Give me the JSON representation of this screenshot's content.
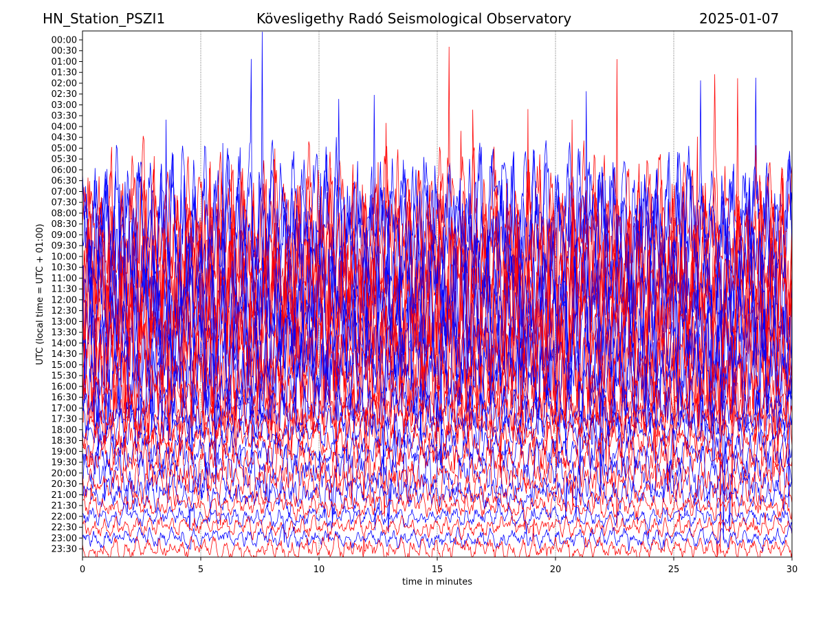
{
  "header": {
    "station": "HN_Station_PSZI1",
    "observatory": "Kövesligethy Radó Seismological Observatory",
    "date": "2025-01-07"
  },
  "chart_data": {
    "type": "line",
    "title": "Kövesligethy Radó Seismological Observatory",
    "xlabel": "time in minutes",
    "ylabel": "UTC (local time = UTC + 01:00)",
    "xlim": [
      0,
      30
    ],
    "xticks": [
      0,
      5,
      10,
      15,
      20,
      25,
      30
    ],
    "grid": "vertical dotted lines at x ticks",
    "yticks": [
      "00:00",
      "00:30",
      "01:00",
      "01:30",
      "02:00",
      "02:30",
      "03:00",
      "03:30",
      "04:00",
      "04:30",
      "05:00",
      "05:30",
      "06:00",
      "06:30",
      "07:00",
      "07:30",
      "08:00",
      "08:30",
      "09:00",
      "09:30",
      "10:00",
      "10:30",
      "11:00",
      "11:30",
      "12:00",
      "12:30",
      "13:00",
      "13:30",
      "14:00",
      "14:30",
      "15:00",
      "15:30",
      "16:00",
      "16:30",
      "17:00",
      "17:30",
      "18:00",
      "18:30",
      "19:00",
      "19:30",
      "20:00",
      "20:30",
      "21:00",
      "21:30",
      "22:00",
      "22:30",
      "23:00",
      "23:30"
    ],
    "series_colors": [
      "#0000ff",
      "#ff0000"
    ],
    "relative_amplitude_per_row": [
      0,
      0,
      0,
      0,
      0,
      0,
      0,
      0,
      0,
      0,
      0,
      0,
      0,
      0,
      0,
      0,
      6,
      7,
      8,
      8,
      8,
      8,
      8,
      8,
      8,
      8,
      8,
      8,
      7,
      7,
      6,
      6,
      5,
      3.5,
      2.5,
      2.5,
      2,
      2.5,
      2,
      2.5,
      2.5,
      2,
      1.6,
      1.2,
      1,
      1,
      1,
      1.1
    ]
  }
}
